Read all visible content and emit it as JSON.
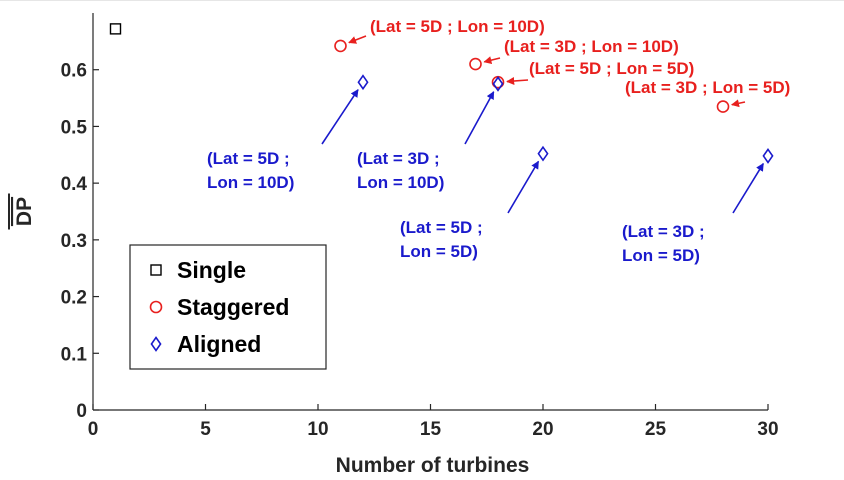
{
  "chart_data": {
    "type": "scatter",
    "xlabel": "Number of turbines",
    "ylabel": "DP",
    "ylabel_overline": true,
    "xlim": [
      0,
      30
    ],
    "ylim": [
      0,
      0.7
    ],
    "xticks": [
      0,
      5,
      10,
      15,
      20,
      25,
      30
    ],
    "yticks": [
      0,
      0.1,
      0.2,
      0.3,
      0.4,
      0.5,
      0.6
    ],
    "ytick_labels": [
      "0",
      "0.1",
      "0.2",
      "0.3",
      "0.4",
      "0.5",
      "0.6"
    ],
    "grid": false,
    "legend_position": "bottom-left",
    "series": [
      {
        "name": "Single",
        "marker": "square",
        "color": "#000000",
        "points": [
          {
            "x": 1,
            "y": 0.672
          }
        ]
      },
      {
        "name": "Staggered",
        "marker": "circle",
        "color": "#e8201e",
        "points": [
          {
            "x": 11,
            "y": 0.642
          },
          {
            "x": 17,
            "y": 0.61
          },
          {
            "x": 18,
            "y": 0.578
          },
          {
            "x": 28,
            "y": 0.535
          }
        ]
      },
      {
        "name": "Aligned",
        "marker": "diamond",
        "color": "#1a1acc",
        "points": [
          {
            "x": 12,
            "y": 0.578
          },
          {
            "x": 18,
            "y": 0.575
          },
          {
            "x": 20,
            "y": 0.452
          },
          {
            "x": 30,
            "y": 0.448
          }
        ]
      }
    ],
    "annotations": [
      {
        "series": "Staggered",
        "lines": [
          "(Lat = 5D ; Lon = 10D)"
        ]
      },
      {
        "series": "Staggered",
        "lines": [
          "(Lat = 3D ; Lon = 10D)"
        ]
      },
      {
        "series": "Staggered",
        "lines": [
          "(Lat = 5D ; Lon = 5D)"
        ]
      },
      {
        "series": "Staggered",
        "lines": [
          "(Lat = 3D ; Lon = 5D)"
        ]
      },
      {
        "series": "Aligned",
        "lines": [
          "(Lat = 5D ;",
          "Lon = 10D)"
        ]
      },
      {
        "series": "Aligned",
        "lines": [
          "(Lat = 3D ;",
          "Lon = 10D)"
        ]
      },
      {
        "series": "Aligned",
        "lines": [
          "(Lat = 5D ;",
          "Lon = 5D)"
        ]
      },
      {
        "series": "Aligned",
        "lines": [
          "(Lat = 3D ;",
          "Lon = 5D)"
        ]
      }
    ]
  }
}
